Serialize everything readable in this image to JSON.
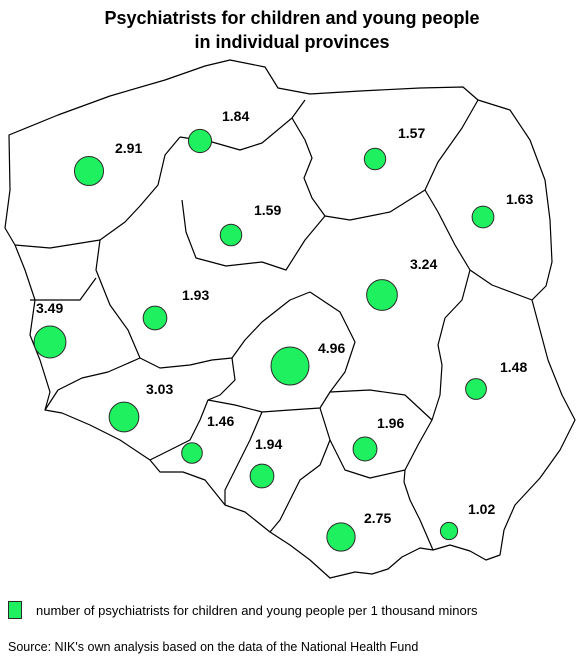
{
  "title": {
    "line1": "Psychiatrists for children and young people",
    "line2": "in individual provinces"
  },
  "bubble_color": "#1ff05f",
  "legend": {
    "label": "number of psychiatrists for children and young people per 1 thousand minors"
  },
  "source": "Source: NIK's own analysis based on the data of the National Health Fund",
  "chart_data": {
    "type": "bubble-map",
    "values": [
      2.91,
      1.84,
      1.57,
      1.59,
      1.63,
      3.49,
      1.93,
      3.24,
      4.96,
      1.48,
      3.03,
      1.46,
      1.94,
      1.96,
      2.75,
      1.02
    ]
  }
}
